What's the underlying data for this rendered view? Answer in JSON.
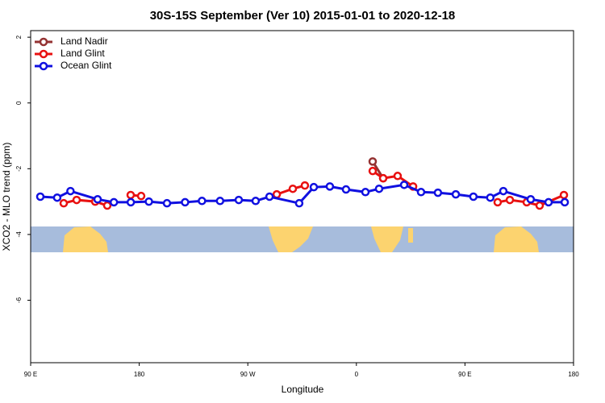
{
  "chart_data": {
    "type": "line",
    "title": "30S-15S September (Ver 10)   2015-01-01 to 2020-12-18",
    "x_label": "Longitude",
    "y_label": "XCO2 - MLO trend (ppm)",
    "xlim": [
      90,
      540
    ],
    "xticks": [
      {
        "value": 90,
        "label": "90 E"
      },
      {
        "value": 180,
        "label": "180"
      },
      {
        "value": 270,
        "label": "90 W"
      },
      {
        "value": 360,
        "label": "0"
      },
      {
        "value": 450,
        "label": "90 E"
      },
      {
        "value": 540,
        "label": "180"
      }
    ],
    "ylim": [
      -7.9,
      2.2
    ],
    "yticks": [
      2,
      0,
      -2,
      -4,
      -6
    ],
    "legend": "upper-left",
    "series": [
      {
        "name": "Land Nadir",
        "color": "#943232",
        "x": [
          373.5,
          382.2
        ],
        "values": [
          -1.78,
          -2.29
        ]
      },
      {
        "name": "Land Glint",
        "color": "#e81010",
        "x": [
          117.4,
          128.1,
          143.5,
          153.5,
          null,
          172.9,
          181.6,
          null,
          294,
          307.3,
          317.3,
          null,
          373.5,
          382.2,
          394.2,
          407,
          null,
          477.1,
          487.2,
          501.2,
          511.9,
          532
        ],
        "values": [
          -3.05,
          -2.95,
          -3.0,
          -3.12,
          null,
          -2.8,
          -2.83,
          null,
          -2.78,
          -2.61,
          -2.51,
          null,
          -2.07,
          -2.29,
          -2.22,
          -2.54,
          null,
          -3.02,
          -2.95,
          -3.02,
          -3.12,
          -2.8
        ]
      },
      {
        "name": "Ocean Glint",
        "color": "#1010e0",
        "x": [
          98,
          112,
          123,
          145.5,
          159,
          173,
          188,
          203,
          218,
          232,
          247,
          262.5,
          276.5,
          288,
          312.6,
          324.7,
          338,
          351.4,
          367.5,
          378.8,
          399.6,
          413.6,
          427.6,
          442.4,
          457,
          471,
          481.8,
          504.5,
          519.3,
          532.7
        ],
        "values": [
          -2.85,
          -2.88,
          -2.68,
          -2.93,
          -3.02,
          -3.02,
          -3.0,
          -3.05,
          -3.02,
          -2.98,
          -2.98,
          -2.95,
          -2.98,
          -2.85,
          -3.05,
          -2.56,
          -2.54,
          -2.63,
          -2.71,
          -2.61,
          -2.49,
          -2.71,
          -2.73,
          -2.78,
          -2.85,
          -2.88,
          -2.68,
          -2.93,
          -3.02,
          -3.02
        ]
      }
    ]
  }
}
